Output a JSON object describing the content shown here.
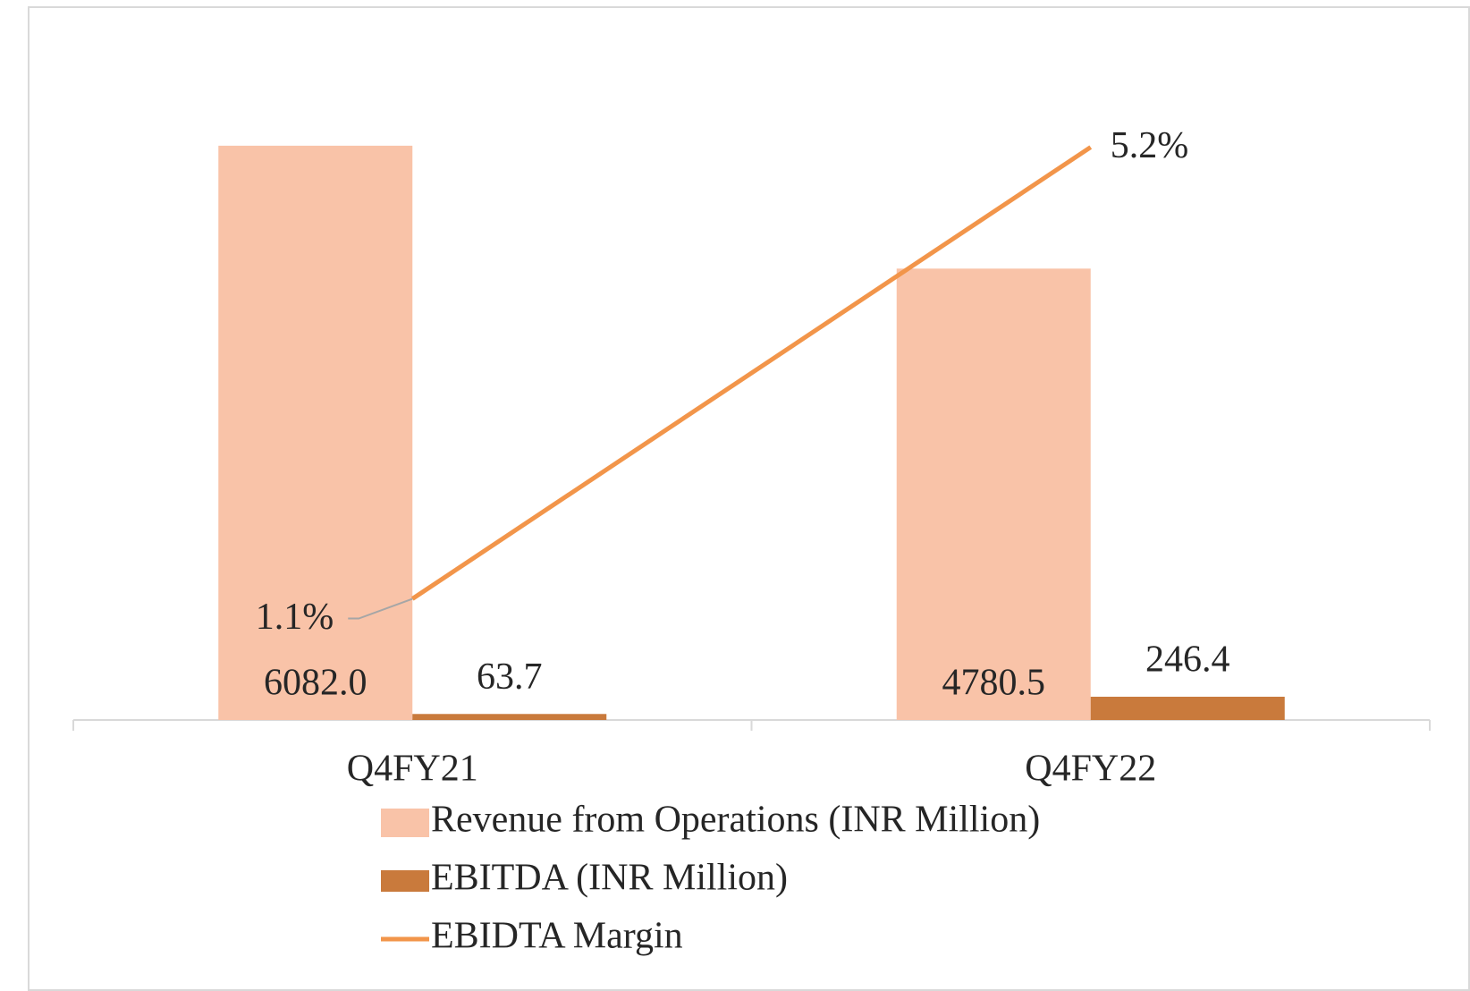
{
  "chart_data": {
    "type": "bar_line",
    "categories": [
      "Q4FY21",
      "Q4FY22"
    ],
    "series": [
      {
        "name": "Revenue from Operations (INR Million)",
        "color": "#F9C3A8",
        "type": "bar",
        "values": [
          6082.0,
          4780.5
        ],
        "value_labels": [
          "6082.0",
          "4780.5"
        ]
      },
      {
        "name": "EBITDA (INR Million)",
        "color": "#C97A3C",
        "type": "bar",
        "values": [
          63.7,
          246.4
        ]
      },
      {
        "name": "EBIDTA Margin",
        "color": "#F2954A",
        "type": "line",
        "axis": "y2",
        "values": [
          1.1,
          5.2
        ],
        "value_labels": [
          "1.1%",
          "5.2%"
        ]
      }
    ],
    "ylim": [
      0,
      7000
    ],
    "y2lim": [
      0,
      6
    ],
    "grid": false,
    "legend": "bottom"
  }
}
